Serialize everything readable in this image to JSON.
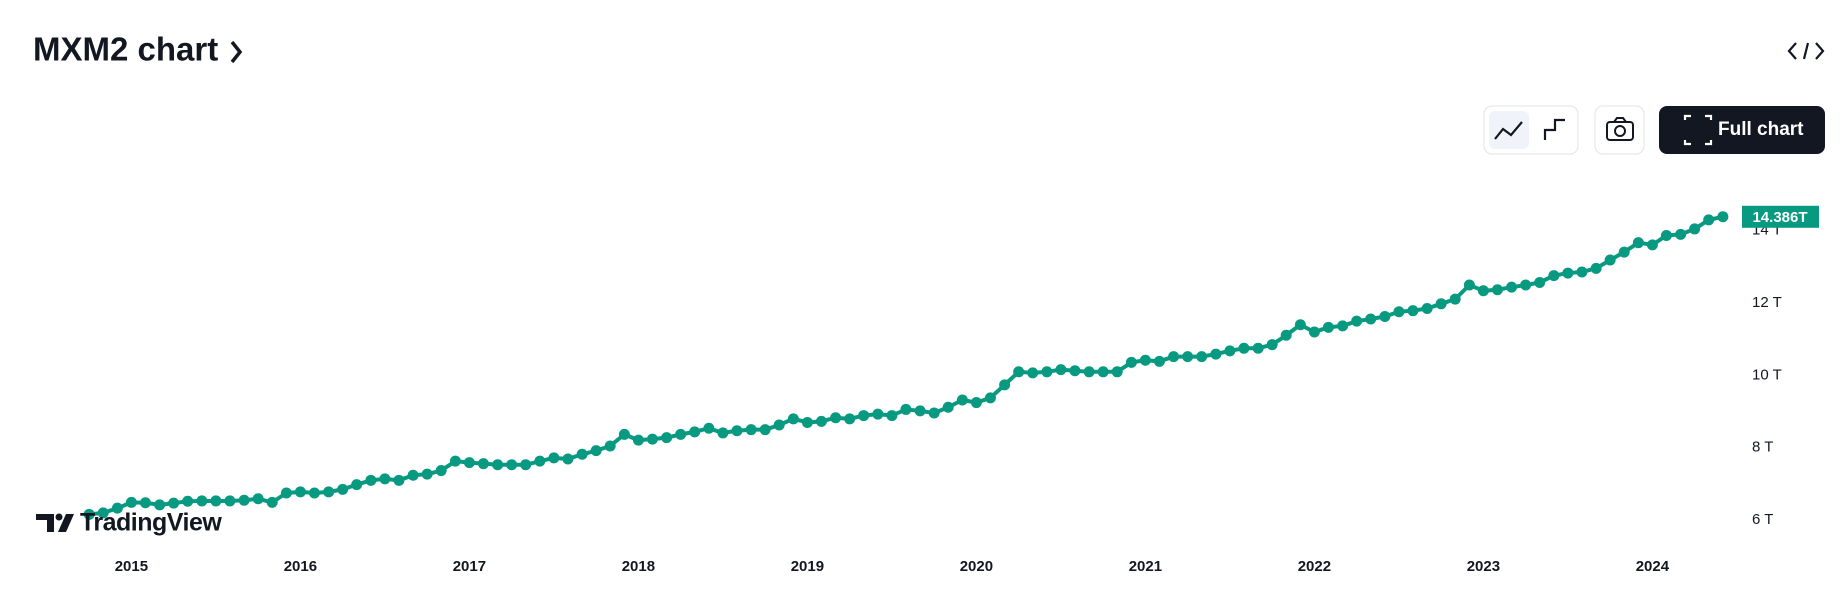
{
  "chart_data": {
    "type": "line",
    "title": "MXM2 chart",
    "color": "#089981",
    "x": [
      2014.75,
      2014.833,
      2014.917,
      2015,
      2015.083,
      2015.167,
      2015.25,
      2015.333,
      2015.417,
      2015.5,
      2015.583,
      2015.667,
      2015.75,
      2015.833,
      2015.917,
      2016,
      2016.083,
      2016.167,
      2016.25,
      2016.333,
      2016.417,
      2016.5,
      2016.583,
      2016.667,
      2016.75,
      2016.833,
      2016.917,
      2017,
      2017.083,
      2017.167,
      2017.25,
      2017.333,
      2017.417,
      2017.5,
      2017.583,
      2017.667,
      2017.75,
      2017.833,
      2017.917,
      2018,
      2018.083,
      2018.167,
      2018.25,
      2018.333,
      2018.417,
      2018.5,
      2018.583,
      2018.667,
      2018.75,
      2018.833,
      2018.917,
      2019,
      2019.083,
      2019.167,
      2019.25,
      2019.333,
      2019.417,
      2019.5,
      2019.583,
      2019.667,
      2019.75,
      2019.833,
      2019.917,
      2020,
      2020.083,
      2020.167,
      2020.25,
      2020.333,
      2020.417,
      2020.5,
      2020.583,
      2020.667,
      2020.75,
      2020.833,
      2020.917,
      2021,
      2021.083,
      2021.167,
      2021.25,
      2021.333,
      2021.417,
      2021.5,
      2021.583,
      2021.667,
      2021.75,
      2021.833,
      2021.917,
      2022,
      2022.083,
      2022.167,
      2022.25,
      2022.333,
      2022.417,
      2022.5,
      2022.583,
      2022.667,
      2022.75,
      2022.833,
      2022.917,
      2023,
      2023.083,
      2023.167,
      2023.25,
      2023.333,
      2023.417,
      2023.5,
      2023.583,
      2023.667,
      2023.75,
      2023.833,
      2023.917,
      2024,
      2024.083,
      2024.167,
      2024.25,
      2024.333,
      2024.417
    ],
    "values": [
      6.16,
      6.2,
      6.33,
      6.49,
      6.48,
      6.42,
      6.47,
      6.52,
      6.53,
      6.53,
      6.53,
      6.55,
      6.59,
      6.49,
      6.75,
      6.78,
      6.75,
      6.78,
      6.85,
      6.98,
      7.1,
      7.14,
      7.1,
      7.24,
      7.27,
      7.37,
      7.63,
      7.59,
      7.56,
      7.53,
      7.53,
      7.53,
      7.63,
      7.72,
      7.69,
      7.82,
      7.92,
      8.05,
      8.37,
      8.21,
      8.24,
      8.28,
      8.37,
      8.44,
      8.54,
      8.41,
      8.47,
      8.5,
      8.5,
      8.63,
      8.8,
      8.7,
      8.73,
      8.83,
      8.8,
      8.89,
      8.93,
      8.89,
      9.06,
      9.02,
      8.96,
      9.12,
      9.32,
      9.25,
      9.38,
      9.74,
      10.1,
      10.07,
      10.1,
      10.16,
      10.13,
      10.1,
      10.1,
      10.1,
      10.36,
      10.42,
      10.39,
      10.52,
      10.52,
      10.52,
      10.59,
      10.68,
      10.75,
      10.75,
      10.85,
      11.11,
      11.4,
      11.2,
      11.33,
      11.37,
      11.5,
      11.56,
      11.63,
      11.76,
      11.79,
      11.85,
      11.98,
      12.11,
      12.5,
      12.34,
      12.37,
      12.44,
      12.5,
      12.57,
      12.76,
      12.83,
      12.86,
      12.96,
      13.19,
      13.41,
      13.67,
      13.61,
      13.87,
      13.9,
      14.05,
      14.3,
      14.386
    ],
    "last_value_label": "14.386T",
    "xlim": [
      2014.4,
      2024.4
    ],
    "xticks": [
      2015,
      2016,
      2017,
      2018,
      2019,
      2020,
      2021,
      2022,
      2023,
      2024
    ],
    "ylim": [
      5.45,
      14.85
    ],
    "yticks": [
      {
        "value": 6,
        "label": "6 T"
      },
      {
        "value": 8,
        "label": "8 T"
      },
      {
        "value": 10,
        "label": "10 T"
      },
      {
        "value": 12,
        "label": "12 T"
      },
      {
        "value": 14,
        "label": "14 T"
      }
    ]
  },
  "ui": {
    "full_chart": "Full chart",
    "logo": "TradingView"
  }
}
